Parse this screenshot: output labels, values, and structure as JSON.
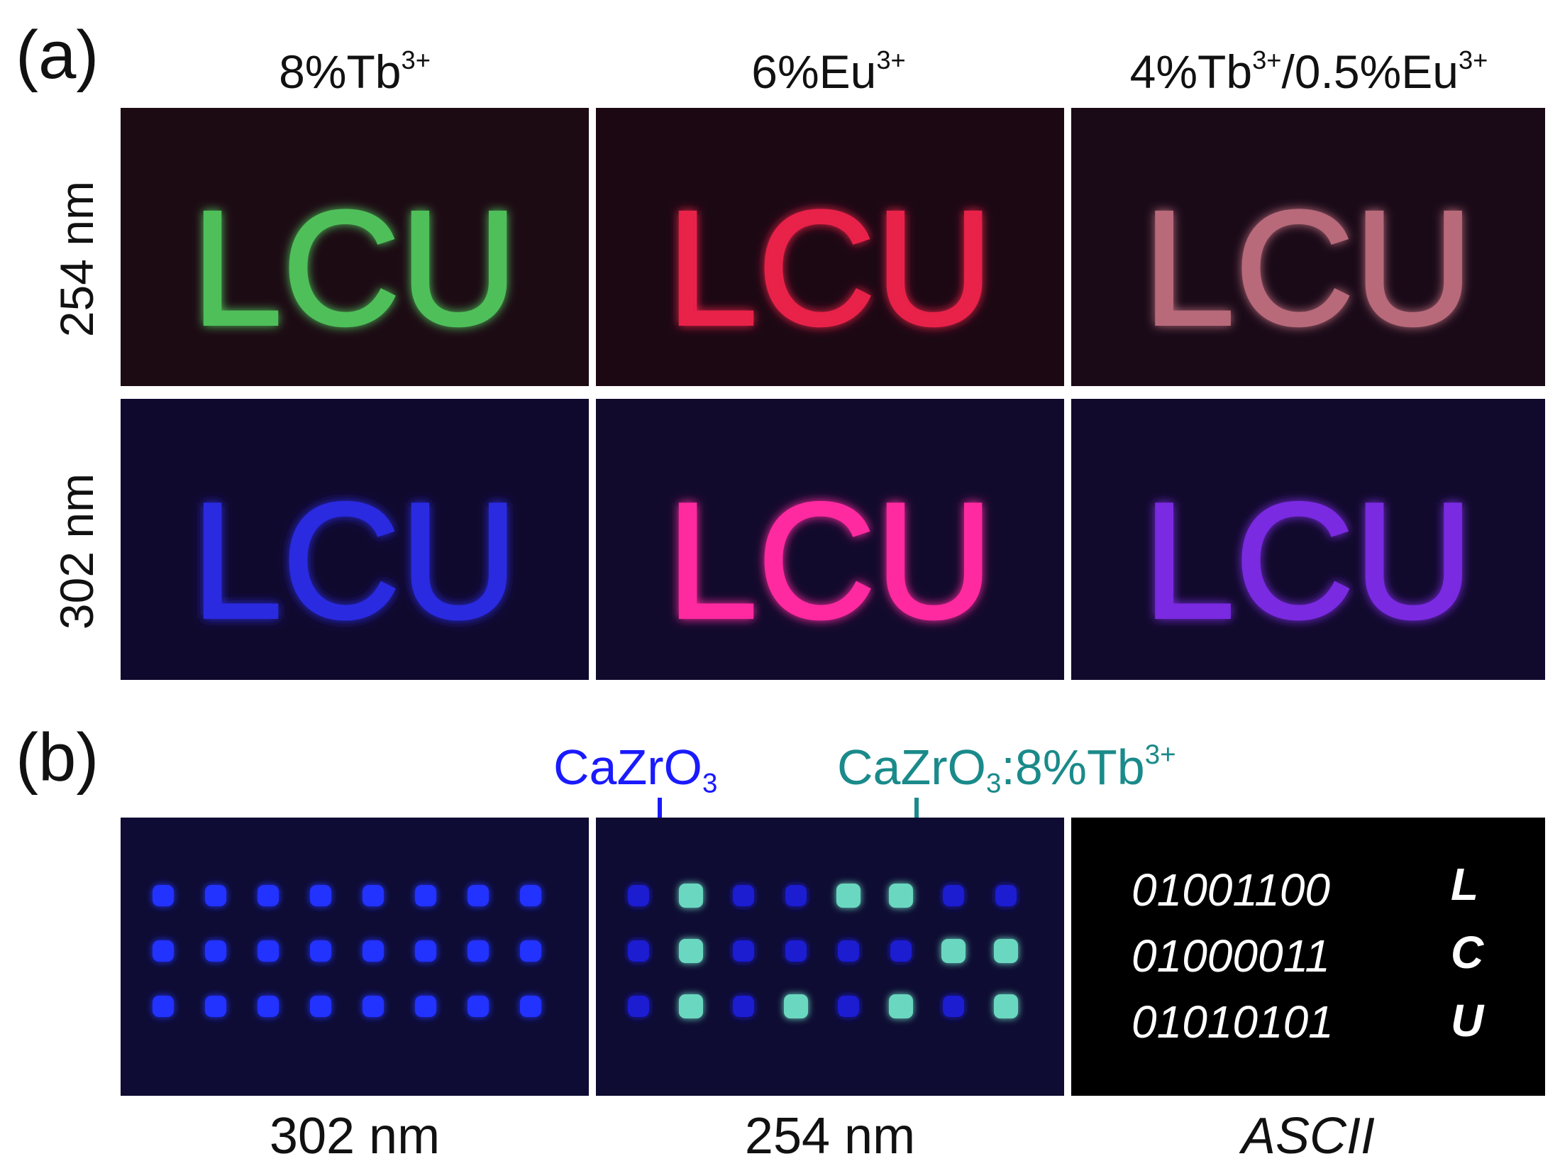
{
  "panel_a": {
    "label": "(a)",
    "columns": [
      {
        "base": "8%Tb",
        "sup": "3+"
      },
      {
        "base": "6%Eu",
        "sup": "3+"
      },
      {
        "base": "4%Tb",
        "sup": "3+",
        "mid": "/0.5%Eu",
        "sup2": "3+"
      }
    ],
    "rows": [
      "254 nm",
      "302 nm"
    ],
    "photo_text": "LCU",
    "glow_colors": {
      "row1": [
        "#4fbf5a",
        "#e8204a",
        "#b86a7a"
      ],
      "row2": [
        "#2a2ae0",
        "#ff2aa0",
        "#7a2ae0"
      ]
    }
  },
  "panel_b": {
    "label": "(b)",
    "material1": {
      "base": "CaZrO",
      "sub": "3",
      "color": "#1a1aff"
    },
    "material2": {
      "base": "CaZrO",
      "sub": "3",
      "rest": ":8%Tb",
      "sup": "3+",
      "color": "#1a8a8a"
    },
    "bottom_labels": [
      "302 nm",
      "254 nm",
      "ASCII"
    ],
    "ascii_codes": [
      "01001100",
      "01000011",
      "01010101"
    ],
    "ascii_letters": [
      "L",
      "C",
      "U"
    ],
    "dot_colors": {
      "blue": "#2030ff",
      "teal": "#6ad8c0",
      "dark_blue": "#1a1ad0"
    }
  }
}
